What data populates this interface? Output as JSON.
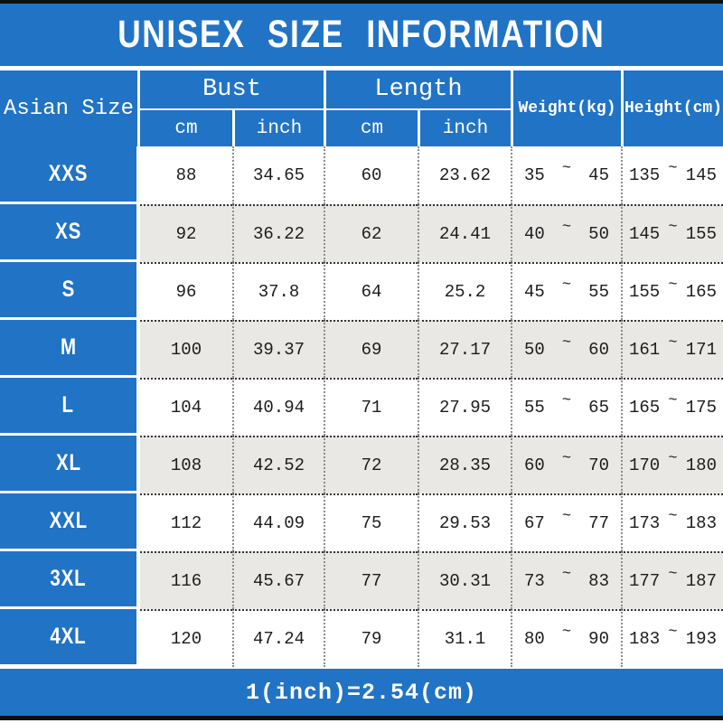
{
  "title": "UNISEX SIZE INFORMATION",
  "footer_note": "1(inch)=2.54(cm)",
  "tilde": "~",
  "colors": {
    "header_blue": "#2173C5",
    "alt_row_gray": "#E9E8E5",
    "plain_row_white": "#FFFFFF",
    "frame_black": "#0F0F0F",
    "cell_text": "#1C1C1C"
  },
  "table": {
    "corner_header": "Asian Size",
    "group_headers": [
      {
        "label": "Bust",
        "subs": [
          "cm",
          "inch"
        ]
      },
      {
        "label": "Length",
        "subs": [
          "cm",
          "inch"
        ]
      }
    ],
    "span_headers": [
      {
        "label": "Weight(kg)"
      },
      {
        "label": "Height(cm)"
      }
    ],
    "rows": [
      {
        "size": "XXS",
        "bust_cm": "88",
        "bust_inch": "34.65",
        "length_cm": "60",
        "length_inch": "23.62",
        "weight_min": "35",
        "weight_max": "45",
        "height_min": "135",
        "height_max": "145"
      },
      {
        "size": "XS",
        "bust_cm": "92",
        "bust_inch": "36.22",
        "length_cm": "62",
        "length_inch": "24.41",
        "weight_min": "40",
        "weight_max": "50",
        "height_min": "145",
        "height_max": "155"
      },
      {
        "size": "S",
        "bust_cm": "96",
        "bust_inch": "37.8",
        "length_cm": "64",
        "length_inch": "25.2",
        "weight_min": "45",
        "weight_max": "55",
        "height_min": "155",
        "height_max": "165"
      },
      {
        "size": "M",
        "bust_cm": "100",
        "bust_inch": "39.37",
        "length_cm": "69",
        "length_inch": "27.17",
        "weight_min": "50",
        "weight_max": "60",
        "height_min": "161",
        "height_max": "171"
      },
      {
        "size": "L",
        "bust_cm": "104",
        "bust_inch": "40.94",
        "length_cm": "71",
        "length_inch": "27.95",
        "weight_min": "55",
        "weight_max": "65",
        "height_min": "165",
        "height_max": "175"
      },
      {
        "size": "XL",
        "bust_cm": "108",
        "bust_inch": "42.52",
        "length_cm": "72",
        "length_inch": "28.35",
        "weight_min": "60",
        "weight_max": "70",
        "height_min": "170",
        "height_max": "180"
      },
      {
        "size": "XXL",
        "bust_cm": "112",
        "bust_inch": "44.09",
        "length_cm": "75",
        "length_inch": "29.53",
        "weight_min": "67",
        "weight_max": "77",
        "height_min": "173",
        "height_max": "183"
      },
      {
        "size": "3XL",
        "bust_cm": "116",
        "bust_inch": "45.67",
        "length_cm": "77",
        "length_inch": "30.31",
        "weight_min": "73",
        "weight_max": "83",
        "height_min": "177",
        "height_max": "187"
      },
      {
        "size": "4XL",
        "bust_cm": "120",
        "bust_inch": "47.24",
        "length_cm": "79",
        "length_inch": "31.1",
        "weight_min": "80",
        "weight_max": "90",
        "height_min": "183",
        "height_max": "193"
      }
    ]
  }
}
